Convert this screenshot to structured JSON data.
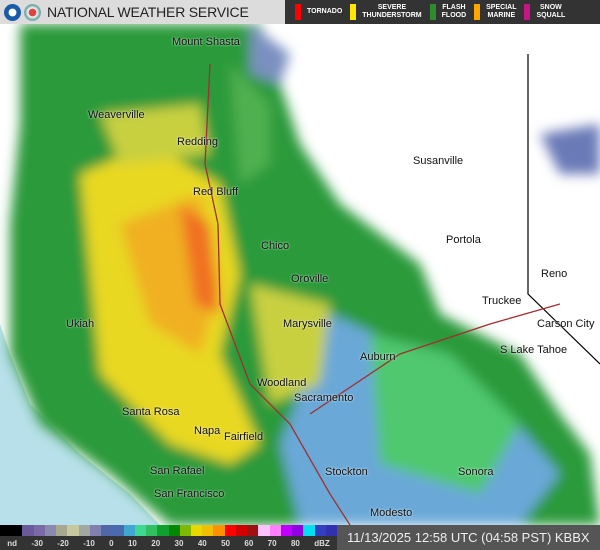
{
  "header": {
    "title": "NATIONAL WEATHER SERVICE",
    "logos": [
      "noaa-logo",
      "nws-logo"
    ]
  },
  "warnings": [
    {
      "label": "TORNADO",
      "color": "#ff0000"
    },
    {
      "label": "SEVERE\nTHUNDERSTORM",
      "color": "#ffe600"
    },
    {
      "label": "FLASH\nFLOOD",
      "color": "#2e8b2e"
    },
    {
      "label": "SPECIAL\nMARINE",
      "color": "#ffa500"
    },
    {
      "label": "SNOW\nSQUALL",
      "color": "#c71585"
    }
  ],
  "cities": [
    "Mount Shasta",
    "Weaverville",
    "Redding",
    "Red Bluff",
    "Susanville",
    "Chico",
    "Portola",
    "Oroville",
    "Reno",
    "Truckee",
    "Ukiah",
    "Marysville",
    "Carson City",
    "Auburn",
    "S Lake Tahoe",
    "Woodland",
    "Sacramento",
    "Santa Rosa",
    "Napa",
    "Fairfield",
    "Stockton",
    "Sonora",
    "San Rafael",
    "San Francisco",
    "Modesto"
  ],
  "scale": {
    "ticks": [
      "nd",
      "-30",
      "-20",
      "-10",
      "0",
      "10",
      "20",
      "30",
      "40",
      "50",
      "60",
      "70",
      "80",
      "dBZ"
    ],
    "colors": [
      "#000",
      "#000",
      "#6a5a9a",
      "#7a6aa8",
      "#8a8ab0",
      "#a8a890",
      "#c8c8a0",
      "#a0a8a0",
      "#8080b0",
      "#5068a8",
      "#4a6ab0",
      "#40a8d0",
      "#40d890",
      "#30c060",
      "#10a030",
      "#008800",
      "#80b800",
      "#e8d800",
      "#f0c000",
      "#ff9000",
      "#ff0000",
      "#d00000",
      "#a01010",
      "#ffc0ff",
      "#ff80ff",
      "#c000ff",
      "#9000e0",
      "#00e0f0",
      "#3040c0",
      "#3030b0"
    ]
  },
  "timestamp": "11/13/2025 12:58 UTC (04:58 PST)  KBBX"
}
